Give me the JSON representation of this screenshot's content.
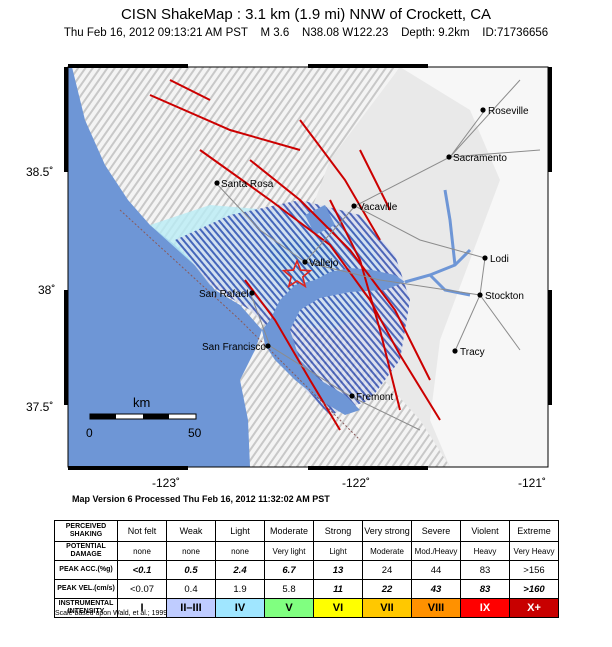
{
  "header": {
    "title": "CISN ShakeMap : 3.1 km (1.9 mi) NNW of Crockett, CA",
    "subtitle": "Thu Feb 16, 2012 09:13:21 AM PST    M 3.6    N38.08 W122.23    Depth: 9.2km    ID:71736656"
  },
  "map": {
    "lat_labels": [
      "38.5˚",
      "38˚",
      "37.5˚"
    ],
    "lon_labels": [
      "-123˚",
      "-122˚",
      "-121˚"
    ],
    "cities": [
      {
        "name": "Roseville"
      },
      {
        "name": "Sacramento"
      },
      {
        "name": "Santa Rosa"
      },
      {
        "name": "Vacaville"
      },
      {
        "name": "Vallejo"
      },
      {
        "name": "Lodi"
      },
      {
        "name": "San Rafael"
      },
      {
        "name": "Stockton"
      },
      {
        "name": "San Francisco"
      },
      {
        "name": "Tracy"
      },
      {
        "name": "Fremont"
      }
    ],
    "scale_bar": {
      "unit": "km",
      "start": "0",
      "end": "50"
    },
    "epicenter_icon": "star-icon",
    "colors": {
      "ocean": "#6e96d6",
      "land": "#e8e8e8",
      "faults": "#cc0000",
      "shaking": "#b9ecf5"
    }
  },
  "processed": "Map Version 6 Processed Thu Feb 16, 2012 11:32:02 AM PST",
  "legend": {
    "row_heads": {
      "shaking": [
        "PERCEIVED",
        "SHAKING"
      ],
      "damage": [
        "POTENTIAL",
        "DAMAGE"
      ],
      "acc": "PEAK ACC.(%g)",
      "vel": "PEAK VEL.(cm/s)",
      "intensity": [
        "INSTRUMENTAL",
        "INTENSITY"
      ]
    },
    "shaking": [
      "Not felt",
      "Weak",
      "Light",
      "Moderate",
      "Strong",
      "Very strong",
      "Severe",
      "Violent",
      "Extreme"
    ],
    "damage": [
      "none",
      "none",
      "none",
      "Very light",
      "Light",
      "Moderate",
      "Mod./Heavy",
      "Heavy",
      "Very Heavy"
    ],
    "acc": [
      "<0.1",
      "0.5",
      "2.4",
      "6.7",
      "13",
      "24",
      "44",
      "83",
      ">156"
    ],
    "vel": [
      "<0.07",
      "0.4",
      "1.9",
      "5.8",
      "11",
      "22",
      "43",
      "83",
      ">160"
    ],
    "intensity": [
      "I",
      "II–III",
      "IV",
      "V",
      "VI",
      "VII",
      "VIII",
      "IX",
      "X+"
    ],
    "intensity_colors": [
      "#ffffff",
      "#bfccff",
      "#a0e6ff",
      "#80ff80",
      "#ffff00",
      "#ffc800",
      "#ff9100",
      "#ff0000",
      "#c80000"
    ]
  },
  "note": "Scale based upon Wald, et al.; 1999"
}
